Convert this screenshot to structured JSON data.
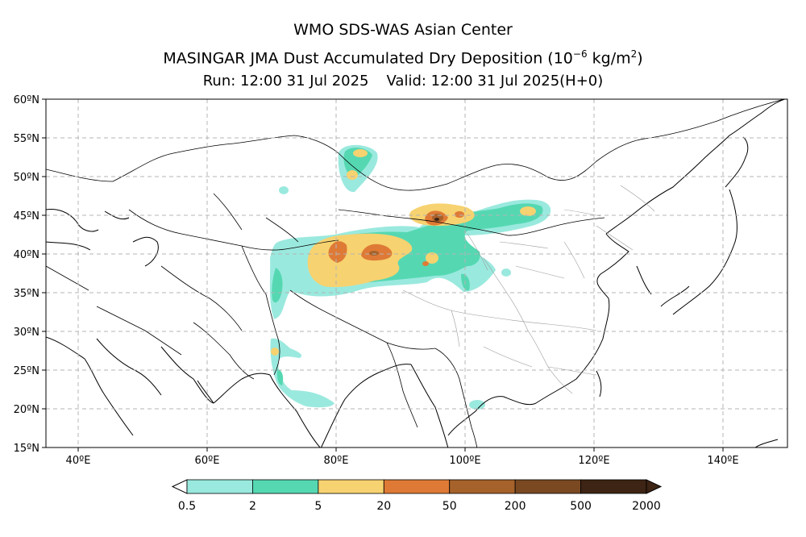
{
  "header": {
    "center_name": "WMO SDS-WAS Asian Center",
    "product_main": "MASINGAR JMA Dust Accumulated Dry Deposition (10",
    "product_exp": "−6",
    "product_unit": " kg/m",
    "product_unit_exp": "2",
    "product_close": ")",
    "run_label": "Run: 12:00 31 Jul 2025",
    "valid_label": "Valid: 12:00 31 Jul 2025(H+0)"
  },
  "map": {
    "lat_ticks": [
      "60ºN",
      "55ºN",
      "50ºN",
      "45ºN",
      "40ºN",
      "35ºN",
      "30ºN",
      "25ºN",
      "20ºN",
      "15ºN"
    ],
    "lon_ticks": [
      "40ºE",
      "60ºE",
      "80ºE",
      "100ºE",
      "120ºE",
      "140ºE"
    ],
    "lat_values": [
      60,
      55,
      50,
      45,
      40,
      35,
      30,
      25,
      20,
      15
    ],
    "lon_values": [
      40,
      60,
      80,
      100,
      120,
      140
    ],
    "extent": {
      "lon_min": 35,
      "lon_max": 150,
      "lat_min": 15,
      "lat_max": 60
    },
    "grid": "dashed"
  },
  "legend": {
    "labels": [
      "0.5",
      "2",
      "5",
      "20",
      "50",
      "200",
      "500",
      "2000"
    ],
    "colors": [
      "#9ae9de",
      "#55d8b2",
      "#f7d270",
      "#de7a36",
      "#a6622b",
      "#7a4922",
      "#3d2414"
    ]
  }
}
